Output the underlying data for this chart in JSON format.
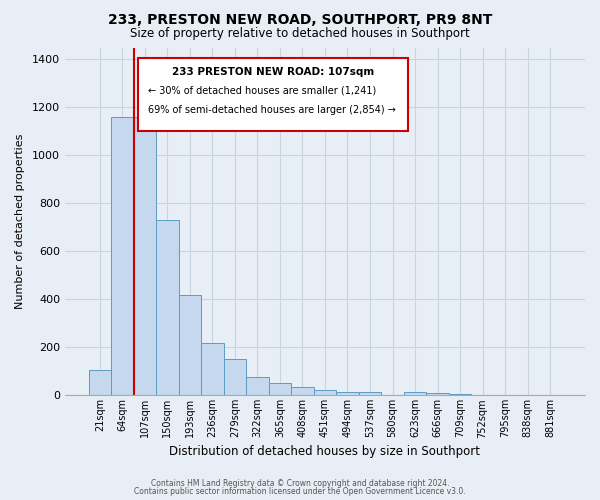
{
  "title": "233, PRESTON NEW ROAD, SOUTHPORT, PR9 8NT",
  "subtitle": "Size of property relative to detached houses in Southport",
  "xlabel": "Distribution of detached houses by size in Southport",
  "ylabel": "Number of detached properties",
  "bar_labels": [
    "21sqm",
    "64sqm",
    "107sqm",
    "150sqm",
    "193sqm",
    "236sqm",
    "279sqm",
    "322sqm",
    "365sqm",
    "408sqm",
    "451sqm",
    "494sqm",
    "537sqm",
    "580sqm",
    "623sqm",
    "666sqm",
    "709sqm",
    "752sqm",
    "795sqm",
    "838sqm",
    "881sqm"
  ],
  "bar_values": [
    107,
    1160,
    1160,
    730,
    420,
    220,
    150,
    75,
    50,
    35,
    20,
    15,
    15,
    0,
    15,
    10,
    5,
    0,
    0,
    0,
    0
  ],
  "bar_color": "#c5d8ed",
  "bar_edge_color": "#5a9bc5",
  "highlight_bar_index": 2,
  "highlight_color": "#cc0000",
  "ylim": [
    0,
    1450
  ],
  "yticks": [
    0,
    200,
    400,
    600,
    800,
    1000,
    1200,
    1400
  ],
  "annotation_title": "233 PRESTON NEW ROAD: 107sqm",
  "annotation_line1": "← 30% of detached houses are smaller (1,241)",
  "annotation_line2": "69% of semi-detached houses are larger (2,854) →",
  "annotation_box_color": "#ffffff",
  "annotation_box_edge": "#cc0000",
  "footer_line1": "Contains HM Land Registry data © Crown copyright and database right 2024.",
  "footer_line2": "Contains public sector information licensed under the Open Government Licence v3.0.",
  "background_color": "#e8eef5",
  "grid_color": "#c8d4e0"
}
